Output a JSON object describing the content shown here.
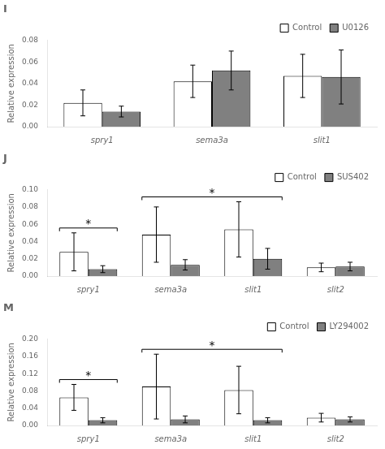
{
  "chart_data": [
    {
      "type": "bar",
      "title": "I",
      "categories": [
        "spry1",
        "sema3a",
        "slit1"
      ],
      "series": [
        {
          "name": "Control",
          "color": "#ffffff",
          "values": [
            0.022,
            0.042,
            0.047
          ],
          "errors": [
            0.012,
            0.015,
            0.02
          ]
        },
        {
          "name": "U0126",
          "color": "#808080",
          "values": [
            0.014,
            0.052,
            0.046
          ],
          "errors": [
            0.005,
            0.018,
            0.025
          ]
        }
      ],
      "ylabel": "Relative expression",
      "ylim": [
        0,
        0.08
      ],
      "yticks": [
        {
          "value": 0,
          "label": "0.00"
        },
        0.02,
        0.04,
        0.06,
        0.08
      ],
      "grid": false,
      "legend": "upper right"
    },
    {
      "type": "bar",
      "title": "J",
      "categories": [
        "spry1",
        "sema3a",
        "slit1",
        "slit2"
      ],
      "series": [
        {
          "name": "Control",
          "color": "#ffffff",
          "values": [
            0.028,
            0.048,
            0.054,
            0.01
          ],
          "errors": [
            0.022,
            0.032,
            0.032,
            0.005
          ]
        },
        {
          "name": "SUS402",
          "color": "#808080",
          "values": [
            0.008,
            0.013,
            0.02,
            0.011
          ],
          "errors": [
            0.004,
            0.006,
            0.012,
            0.005
          ]
        }
      ],
      "ylabel": "Relative expression",
      "ylim": [
        0,
        0.1
      ],
      "yticks": [
        {
          "value": 0,
          "label": "0.00"
        },
        0.02,
        0.04,
        0.06,
        0.08,
        {
          "value": 0.1,
          "label": "0.10"
        }
      ],
      "annotations": [
        {
          "text": "*",
          "from": "spry1",
          "to": "spry1"
        },
        {
          "text": "*",
          "from": "sema3a",
          "to": "slit1"
        }
      ],
      "grid": false,
      "legend": "upper right"
    },
    {
      "type": "bar",
      "title": "M",
      "categories": [
        "spry1",
        "sema3a",
        "slit1",
        "slit2"
      ],
      "series": [
        {
          "name": "Control",
          "color": "#ffffff",
          "values": [
            0.065,
            0.09,
            0.082,
            0.018
          ],
          "errors": [
            0.03,
            0.075,
            0.055,
            0.01
          ]
        },
        {
          "name": "LY294002",
          "color": "#808080",
          "values": [
            0.012,
            0.014,
            0.012,
            0.014
          ],
          "errors": [
            0.006,
            0.008,
            0.006,
            0.006
          ]
        }
      ],
      "ylabel": "Relative expression",
      "ylim": [
        0,
        0.2
      ],
      "yticks": [
        {
          "value": 0,
          "label": "0.00"
        },
        0.04,
        0.08,
        0.12,
        0.16,
        {
          "value": 0.2,
          "label": "0.20"
        }
      ],
      "annotations": [
        {
          "text": "*",
          "from": "spry1",
          "to": "spry1"
        },
        {
          "text": "*",
          "from": "sema3a",
          "to": "slit1"
        }
      ],
      "grid": false,
      "legend": "upper right"
    }
  ]
}
